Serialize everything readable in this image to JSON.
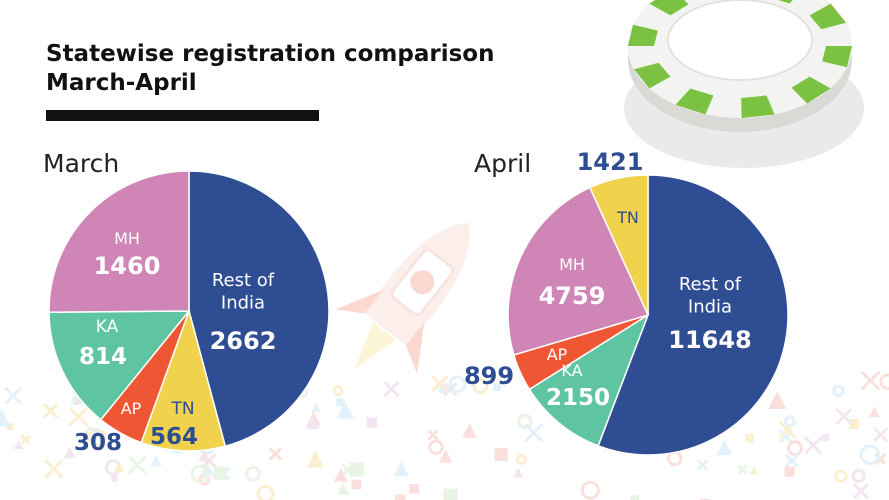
{
  "header": {
    "title_line1": "Statewise registration comparison",
    "title_line2": "March-April"
  },
  "colors": {
    "rest_of_india": "#2e4d93",
    "mh": "#cf86b6",
    "ka": "#5fc4a2",
    "ap": "#ef5734",
    "tn": "#f0d24d",
    "label_outside": "#2e4d93",
    "label_inside": "#ffffff",
    "label_on_yellow": "#2e4d93",
    "chip_green": "#7cc242",
    "chip_white": "#f3f4f1"
  },
  "decorations": [
    "poker-chip",
    "rocket"
  ],
  "chart_data": [
    {
      "type": "pie",
      "title": "March",
      "categories": [
        "Rest of India",
        "TN",
        "AP",
        "KA",
        "MH"
      ],
      "values": [
        2662,
        564,
        308,
        814,
        1460
      ]
    },
    {
      "type": "pie",
      "title": "April",
      "categories": [
        "Rest of India",
        "KA",
        "AP",
        "MH",
        "TN"
      ],
      "values": [
        11648,
        2150,
        899,
        4759,
        1421
      ]
    }
  ]
}
